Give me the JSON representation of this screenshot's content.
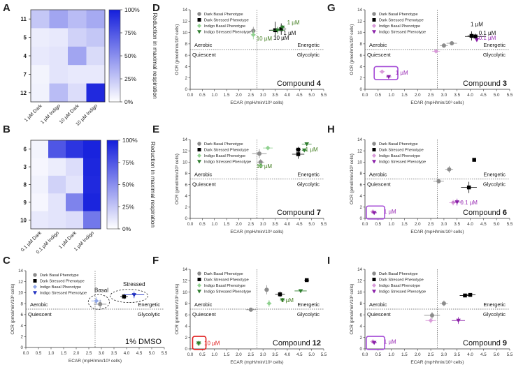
{
  "panel_letters": [
    "A",
    "B",
    "C",
    "D",
    "E",
    "F",
    "G",
    "H",
    "I"
  ],
  "colors": {
    "dark_basal": "#8c8c8c",
    "dark_stressed": "#000000",
    "indigo_green": "#8fd18f",
    "indigo_green_stressed": "#2e7d2e",
    "green_label": "#3d7a1a",
    "indigo_purple": "#d99ad9",
    "indigo_purple_stressed": "#8a1fa8",
    "purple_label": "#9a2fb5",
    "indigo_blue": "#8fa6e8",
    "indigo_blue_stressed": "#2030c0",
    "red_box": "#e02020",
    "purple_box": "#a44ad6"
  },
  "chart_data": [
    {
      "id": "A",
      "type": "heatmap",
      "rows": [
        "11",
        "5",
        "4",
        "7",
        "12"
      ],
      "columns": [
        "1 µM Dark",
        "1 µM Indigo",
        "10 µM Dark",
        "10 µM Indigo"
      ],
      "values": [
        [
          25,
          40,
          30,
          38
        ],
        [
          8,
          10,
          20,
          25
        ],
        [
          10,
          12,
          40,
          16
        ],
        [
          5,
          12,
          10,
          10
        ],
        [
          6,
          30,
          15,
          95
        ]
      ],
      "colorbar": {
        "label": "Reduction in maximal respiration",
        "ticks": [
          "100%",
          "75%",
          "50%",
          "25%",
          "0%"
        ],
        "range": [
          0,
          100
        ]
      }
    },
    {
      "id": "B",
      "type": "heatmap",
      "rows": [
        "6",
        "3",
        "8",
        "9",
        "10"
      ],
      "columns": [
        "0.1 µM Dark",
        "0.1 µM Indigo",
        "1 µM Dark",
        "1 µM Indigo"
      ],
      "values": [
        [
          5,
          75,
          90,
          98
        ],
        [
          4,
          8,
          15,
          96
        ],
        [
          6,
          20,
          12,
          95
        ],
        [
          4,
          12,
          55,
          97
        ],
        [
          10,
          12,
          15,
          60
        ]
      ],
      "colorbar": {
        "label": "Reduction in maximal respiration",
        "ticks": [
          "100%",
          "75%",
          "50%",
          "25%",
          "0%"
        ],
        "range": [
          0,
          100
        ]
      }
    },
    {
      "id": "C",
      "type": "scatter",
      "palette": "blue",
      "compound_prefix": "1% DMSO",
      "compound_bold": "",
      "points": [
        {
          "s": "db",
          "x": 2.95,
          "y": 7.9,
          "xe": 0.25,
          "ye": 0.8
        },
        {
          "s": "ib",
          "x": 2.8,
          "y": 8.5,
          "xe": 0.2,
          "ye": 0.7
        },
        {
          "s": "ds",
          "x": 3.9,
          "y": 9.3,
          "xe": 0.15,
          "ye": 0.5
        },
        {
          "s": "is",
          "x": 4.3,
          "y": 9.6,
          "xe": 0.4,
          "ye": 0.6
        }
      ],
      "annotations": [
        {
          "text": "Basal",
          "x": 3.0,
          "y": 10.1
        },
        {
          "text": "Stressed",
          "x": 4.3,
          "y": 11.2
        }
      ],
      "ellipses": [
        {
          "cx": 2.9,
          "cy": 8.3,
          "rx": 0.42,
          "ry": 1.35
        },
        {
          "cx": 4.1,
          "cy": 9.4,
          "rx": 0.75,
          "ry": 1.2
        }
      ]
    },
    {
      "id": "D",
      "type": "scatter",
      "palette": "green",
      "compound_prefix": "Compound ",
      "compound_bold": "4",
      "points": [
        {
          "s": "db",
          "x": 2.6,
          "y": 10.3,
          "xe": 0.1,
          "ye": 0.7
        },
        {
          "s": "ib",
          "x": 2.6,
          "y": 9.6,
          "xe": 0.1,
          "ye": 0.8
        },
        {
          "s": "ds",
          "x": 3.5,
          "y": 10.4,
          "xe": 0.25,
          "ye": 1.5
        },
        {
          "s": "ds",
          "x": 3.75,
          "y": 10.6,
          "xe": 0.2,
          "ye": 1.0
        },
        {
          "s": "is",
          "x": 3.6,
          "y": 10.4,
          "xe": 0.3,
          "ye": 0.6
        },
        {
          "s": "is",
          "x": 3.8,
          "y": 10.9,
          "xe": 0.1,
          "ye": 0.4
        }
      ],
      "annotations": [
        {
          "text": "1 µM",
          "x": 4.25,
          "y": 11.4,
          "c": "g"
        },
        {
          "text": "1 µM",
          "x": 4.1,
          "y": 9.6,
          "c": "k"
        },
        {
          "text": "10 µM",
          "x": 3.05,
          "y": 8.6,
          "c": "g"
        },
        {
          "text": "10 µM",
          "x": 3.75,
          "y": 8.7,
          "c": "k"
        }
      ]
    },
    {
      "id": "E",
      "type": "scatter",
      "palette": "green",
      "compound_prefix": "Compound ",
      "compound_bold": "7",
      "points": [
        {
          "s": "db",
          "x": 2.85,
          "y": 11.5,
          "xe": 0.3,
          "ye": 0.8
        },
        {
          "s": "db",
          "x": 2.9,
          "y": 10.0,
          "xe": 0.15,
          "ye": 0.5
        },
        {
          "s": "ib",
          "x": 3.2,
          "y": 12.5,
          "xe": 0.2,
          "ye": 0.4
        },
        {
          "s": "ib",
          "x": 2.9,
          "y": 9.4,
          "xe": 0.15,
          "ye": 0.5
        },
        {
          "s": "ds",
          "x": 4.45,
          "y": 12.2,
          "xe": 0.1,
          "ye": 0.5
        },
        {
          "s": "ds",
          "x": 4.45,
          "y": 11.4,
          "xe": 0.25,
          "ye": 0.8
        },
        {
          "s": "is",
          "x": 4.8,
          "y": 13.2,
          "xe": 0.2,
          "ye": 0.3
        },
        {
          "s": "is",
          "x": 4.7,
          "y": 12.1,
          "xe": 0.1,
          "ye": 0.3
        }
      ],
      "annotations": [
        {
          "text": "1 µM",
          "x": 5.0,
          "y": 11.9,
          "c": "g"
        },
        {
          "text": "10 µM",
          "x": 3.05,
          "y": 8.9,
          "c": "g"
        }
      ]
    },
    {
      "id": "F",
      "type": "scatter",
      "palette": "green",
      "compound_prefix": "Compound ",
      "compound_bold": "12",
      "points": [
        {
          "s": "db",
          "x": 2.5,
          "y": 6.9,
          "xe": 0.2,
          "ye": 0.2
        },
        {
          "s": "db",
          "x": 3.15,
          "y": 10.4,
          "xe": 0.1,
          "ye": 0.8
        },
        {
          "s": "ib",
          "x": 3.25,
          "y": 8.0,
          "xe": 0.1,
          "ye": 0.6
        },
        {
          "s": "ib",
          "x": 0.35,
          "y": 0.9,
          "xe": 0.1,
          "ye": 0.3
        },
        {
          "s": "ds",
          "x": 3.7,
          "y": 9.6,
          "xe": 0.2,
          "ye": 0.5
        },
        {
          "s": "ds",
          "x": 4.8,
          "y": 12.1,
          "xe": 0.1,
          "ye": 0.2
        },
        {
          "s": "is",
          "x": 4.55,
          "y": 10.2,
          "xe": 0.25,
          "ye": 0.3
        },
        {
          "s": "is",
          "x": 3.8,
          "y": 8.6,
          "xe": 0.1,
          "ye": 0.2
        },
        {
          "s": "is",
          "x": 0.35,
          "y": 1.0,
          "xe": 0.1,
          "ye": 0.4
        }
      ],
      "annotations": [
        {
          "text": "1 µM",
          "x": 4.0,
          "y": 8.2,
          "c": "g"
        },
        {
          "text": "10 µM",
          "x": 0.9,
          "y": 0.7,
          "c": "r"
        }
      ],
      "boxes": [
        {
          "x0": 0.1,
          "x1": 0.65,
          "y0": -0.1,
          "y1": 2.2,
          "c": "r"
        }
      ]
    },
    {
      "id": "G",
      "type": "scatter",
      "palette": "purple",
      "compound_prefix": "Compound ",
      "compound_bold": "3",
      "points": [
        {
          "s": "db",
          "x": 3.0,
          "y": 7.7,
          "xe": 0.15,
          "ye": 0.4
        },
        {
          "s": "db",
          "x": 3.3,
          "y": 8.1,
          "xe": 0.2,
          "ye": 0.3
        },
        {
          "s": "ib",
          "x": 2.7,
          "y": 6.7,
          "xe": 0.15,
          "ye": 0.3
        },
        {
          "s": "ib",
          "x": 0.65,
          "y": 3.1,
          "xe": 0.1,
          "ye": 0.3
        },
        {
          "s": "ds",
          "x": 4.05,
          "y": 9.4,
          "xe": 0.15,
          "ye": 0.8
        },
        {
          "s": "ds",
          "x": 4.2,
          "y": 9.3,
          "xe": 0.4,
          "ye": 0.5
        },
        {
          "s": "is",
          "x": 4.25,
          "y": 8.7,
          "xe": 0.05,
          "ye": 0.3
        },
        {
          "s": "is",
          "x": 0.9,
          "y": 2.2,
          "xe": 0.1,
          "ye": 0.2
        }
      ],
      "annotations": [
        {
          "text": "1 µM",
          "x": 4.25,
          "y": 11.1,
          "c": "k"
        },
        {
          "text": "0.1 µM",
          "x": 4.65,
          "y": 9.6,
          "c": "k"
        },
        {
          "text": "0.1 µM",
          "x": 4.65,
          "y": 8.7,
          "c": "p"
        },
        {
          "text": "1 µM",
          "x": 1.4,
          "y": 2.6,
          "c": "p"
        }
      ],
      "boxes": [
        {
          "x0": 0.35,
          "x1": 1.25,
          "y0": 1.7,
          "y1": 4.0,
          "c": "p"
        }
      ]
    },
    {
      "id": "H",
      "type": "scatter",
      "palette": "purple",
      "compound_prefix": "Compound ",
      "compound_bold": "6",
      "points": [
        {
          "s": "db",
          "x": 3.2,
          "y": 8.7,
          "xe": 0.15,
          "ye": 0.6
        },
        {
          "s": "db",
          "x": 2.8,
          "y": 6.6,
          "xe": 0.2,
          "ye": 0.2
        },
        {
          "s": "ib",
          "x": 3.35,
          "y": 2.8,
          "xe": 0.15,
          "ye": 0.5
        },
        {
          "s": "ib",
          "x": 0.3,
          "y": 1.2,
          "xe": 0.1,
          "ye": 0.3
        },
        {
          "s": "ds",
          "x": 4.15,
          "y": 10.4,
          "xe": 0.05,
          "ye": 0.2
        },
        {
          "s": "ds",
          "x": 3.95,
          "y": 5.5,
          "xe": 0.3,
          "ye": 1.0
        },
        {
          "s": "is",
          "x": 3.5,
          "y": 2.9,
          "xe": 0.2,
          "ye": 0.6
        },
        {
          "s": "is",
          "x": 0.35,
          "y": 1.0,
          "xe": 0.1,
          "ye": 0.3
        }
      ],
      "annotations": [
        {
          "text": "0.1 µM",
          "x": 3.95,
          "y": 2.5,
          "c": "p"
        },
        {
          "text": "1 µM",
          "x": 0.95,
          "y": 0.85,
          "c": "p"
        }
      ],
      "boxes": [
        {
          "x0": 0.05,
          "x1": 0.75,
          "y0": -0.1,
          "y1": 2.2,
          "c": "p"
        }
      ]
    },
    {
      "id": "I",
      "type": "scatter",
      "palette": "purple",
      "compound_prefix": "Compound ",
      "compound_bold": "9",
      "points": [
        {
          "s": "db",
          "x": 3.0,
          "y": 8.0,
          "xe": 0.15,
          "ye": 0.5
        },
        {
          "s": "db",
          "x": 2.55,
          "y": 5.9,
          "xe": 0.3,
          "ye": 0.6
        },
        {
          "s": "ib",
          "x": 2.5,
          "y": 5.0,
          "xe": 0.2,
          "ye": 0.5
        },
        {
          "s": "ib",
          "x": 0.3,
          "y": 1.3,
          "xe": 0.1,
          "ye": 0.3
        },
        {
          "s": "ds",
          "x": 3.8,
          "y": 9.4,
          "xe": 0.2,
          "ye": 0.2
        },
        {
          "s": "ds",
          "x": 4.0,
          "y": 9.5,
          "xe": 0.2,
          "ye": 0.2
        },
        {
          "s": "is",
          "x": 3.55,
          "y": 5.0,
          "xe": 0.25,
          "ye": 0.6
        },
        {
          "s": "is",
          "x": 0.35,
          "y": 1.1,
          "xe": 0.1,
          "ye": 0.3
        }
      ],
      "annotations": [
        {
          "text": "1 µM",
          "x": 0.95,
          "y": 0.9,
          "c": "p"
        }
      ],
      "boxes": [
        {
          "x0": 0.05,
          "x1": 0.75,
          "y0": -0.1,
          "y1": 2.2,
          "c": "p"
        }
      ]
    }
  ],
  "scatter_common": {
    "xlabel": "ECAR (mpH/min/10³ cells)",
    "ylabel": "OCR (pmol/min/10³ cells)",
    "xlim": [
      0,
      5.5
    ],
    "ylim": [
      0,
      14
    ],
    "xticks": [
      "0.0",
      "0.5",
      "1.0",
      "1.5",
      "2.0",
      "2.5",
      "3.0",
      "3.5",
      "4.0",
      "4.5",
      "5.0",
      "5.5"
    ],
    "yticks": [
      "0",
      "2",
      "4",
      "6",
      "8",
      "10",
      "12",
      "14"
    ],
    "divider": {
      "x": 2.75,
      "y": 7.0
    },
    "quadrants": {
      "aerobic": "Aerobic",
      "quiescent": "Quiescent",
      "energetic": "Energetic",
      "glycolytic": "Glycolytic"
    },
    "legend": {
      "blue": [
        "Dark Basal Phenotype",
        "Dark Stressed Phenotype",
        "Indigo Basal Phenotype",
        "Indigo Stressed Phenotype"
      ],
      "green": [
        "Dark Basal Phenotype",
        "Dark Stressed Phenotype",
        "Indigo Basal Phenotype",
        "Indigo Stressed Phenotype"
      ],
      "purple": [
        "Dark Basal Phenotype",
        "Dark Stressed Phenotype",
        "Indigo Basal Phenotype",
        "Indigo Stressed Phenotype"
      ]
    }
  }
}
